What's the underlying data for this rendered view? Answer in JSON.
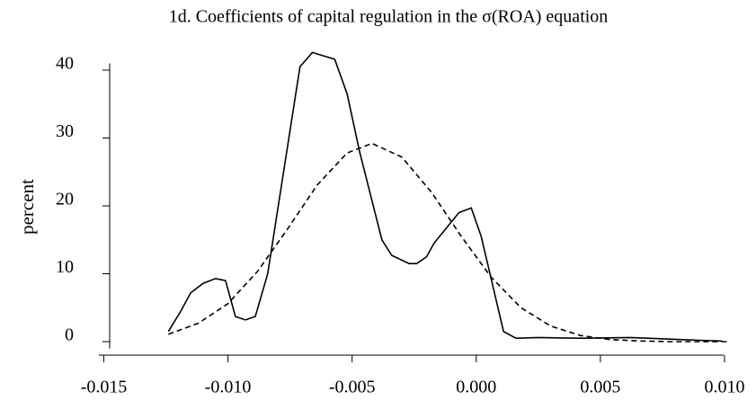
{
  "chart_data": {
    "type": "line",
    "title": "1d. Coefficients of capital regulation in the σ(ROA) equation",
    "y_label": "percent",
    "xlim": [
      -0.0152,
      0.0104
    ],
    "ylim": [
      -1,
      41
    ],
    "xticks": [
      {
        "value": -0.015,
        "label": "-0.015"
      },
      {
        "value": -0.01,
        "label": "-0.010"
      },
      {
        "value": -0.005,
        "label": "-0.005"
      },
      {
        "value": 0,
        "label": "0.000"
      },
      {
        "value": 0.005,
        "label": "0.005"
      },
      {
        "value": 0.01,
        "label": "0.010"
      }
    ],
    "yticks": [
      0,
      10,
      20,
      30,
      40
    ],
    "series": [
      {
        "color": "#000000",
        "dashed": false,
        "x": [
          -0.0124,
          -0.0119,
          -0.0115,
          -0.011,
          -0.0105,
          -0.0101,
          -0.0097,
          -0.0093,
          -0.0089,
          -0.0084,
          -0.0071,
          -0.0066,
          -0.0057,
          -0.0052,
          -0.0047,
          -0.0038,
          -0.0034,
          -0.0027,
          -0.0024,
          -0.002,
          -0.0017,
          -0.0007,
          -0.0002,
          0.0002,
          0.0011,
          0.0016,
          0.0025,
          0.0043,
          0.0062,
          0.0076,
          0.009,
          0.0099
        ],
        "values": [
          1.5,
          4.5,
          7.2,
          8.6,
          9.3,
          9.0,
          3.7,
          3.2,
          3.7,
          10,
          40.5,
          42.6,
          41.6,
          36.5,
          28,
          15,
          12.7,
          11.5,
          11.5,
          12.5,
          14.5,
          19,
          19.7,
          15.5,
          1.5,
          0.5,
          0.6,
          0.5,
          0.6,
          0.4,
          0.2,
          0.1
        ]
      },
      {
        "color": "#000000",
        "dashed": true,
        "x": [
          -0.0124,
          -0.0112,
          -0.01,
          -0.0088,
          -0.0076,
          -0.0064,
          -0.0052,
          -0.0042,
          -0.003,
          -0.0018,
          -0.0006,
          0.0006,
          0.0018,
          0.003,
          0.0042,
          0.0054,
          0.0066,
          0.0078,
          0.009,
          0.0102
        ],
        "values": [
          1.1,
          2.7,
          5.6,
          10.4,
          16.6,
          23.1,
          27.8,
          29.2,
          27.2,
          22.0,
          15.5,
          9.5,
          5.0,
          2.3,
          0.9,
          0.3,
          0.1,
          0.0,
          0.0,
          0.0
        ]
      }
    ]
  }
}
